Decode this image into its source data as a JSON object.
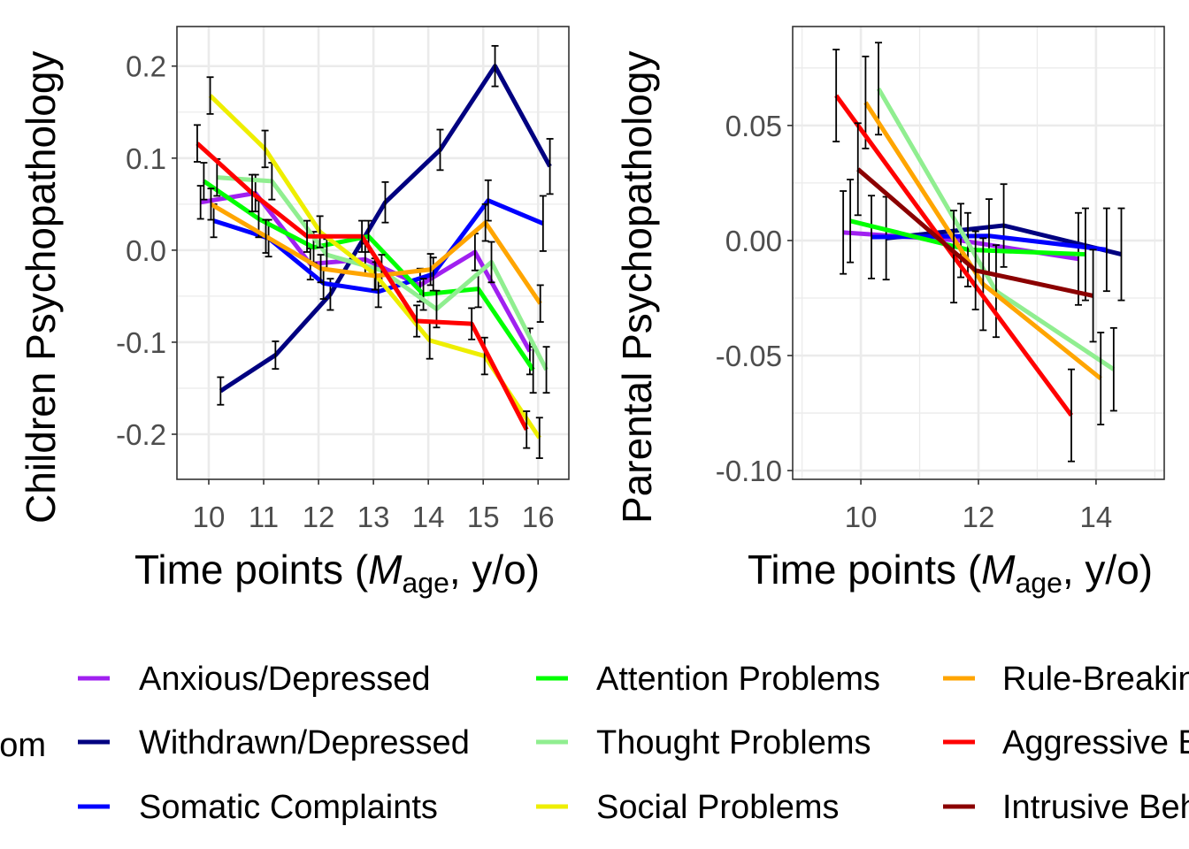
{
  "legend": {
    "title": "Symptom",
    "entries": [
      {
        "name": "Anxious/Depressed",
        "color": "#a020f0"
      },
      {
        "name": "Withdrawn/Depressed",
        "color": "#000080"
      },
      {
        "name": "Somatic Complaints",
        "color": "#0000ff"
      },
      {
        "name": "Attention Problems",
        "color": "#00ff00"
      },
      {
        "name": "Thought Problems",
        "color": "#90ee90"
      },
      {
        "name": "Social Problems",
        "color": "#eeee00"
      },
      {
        "name": "Rule-Breaking Behavior",
        "color": "#ffa500"
      },
      {
        "name": "Aggressive Behavior",
        "color": "#ff0000"
      },
      {
        "name": "Intrusive Behavior",
        "color": "#8b0000"
      }
    ]
  },
  "chart_data": [
    {
      "type": "line",
      "ylabel": "Children Psychopathology",
      "xlabel_main": "Time points (",
      "xlabel_italic": "M",
      "xlabel_sub": "age",
      "xlabel_end": ", y/o)",
      "xlim": [
        9.42,
        16.56
      ],
      "ylim": [
        -0.249,
        0.243
      ],
      "x_ticks": [
        10,
        11,
        12,
        13,
        14,
        15,
        16
      ],
      "y_ticks": [
        -0.2,
        -0.1,
        0.0,
        0.1,
        0.2
      ],
      "y_tick_labels": [
        "-0.2",
        "-0.1",
        "0.0",
        "0.1",
        "0.2"
      ],
      "grid": true,
      "x": [
        10,
        11,
        12,
        13,
        14,
        15,
        16
      ],
      "series": [
        {
          "name": "Anxious/Depressed",
          "values": [
            0.052,
            0.062,
            -0.015,
            -0.01,
            -0.038,
            -0.002,
            -0.11
          ],
          "se": [
            0.018,
            0.02,
            0.017,
            0.017,
            0.018,
            0.02,
            0.025
          ]
        },
        {
          "name": "Withdrawn/Depressed",
          "values": [
            -0.153,
            -0.114,
            -0.048,
            0.052,
            0.109,
            0.2,
            0.091
          ],
          "se": [
            0.015,
            0.015,
            0.017,
            0.022,
            0.022,
            0.022,
            0.03
          ]
        },
        {
          "name": "Somatic Complaints",
          "values": [
            0.032,
            0.013,
            -0.036,
            -0.045,
            -0.026,
            0.054,
            0.029
          ],
          "se": [
            0.018,
            0.02,
            0.017,
            0.017,
            0.018,
            0.022,
            0.03
          ]
        },
        {
          "name": "Attention Problems",
          "values": [
            0.075,
            0.034,
            0.003,
            0.015,
            -0.048,
            -0.042,
            -0.13
          ],
          "se": [
            0.02,
            0.02,
            0.017,
            0.017,
            0.017,
            0.02,
            0.025
          ]
        },
        {
          "name": "Thought Problems",
          "values": [
            0.079,
            0.075,
            -0.005,
            -0.022,
            -0.064,
            -0.013,
            -0.13
          ],
          "se": [
            0.02,
            0.02,
            0.017,
            0.017,
            0.02,
            0.022,
            0.025
          ]
        },
        {
          "name": "Social Problems",
          "values": [
            0.168,
            0.11,
            0.02,
            -0.026,
            -0.098,
            -0.115,
            -0.204
          ],
          "se": [
            0.02,
            0.02,
            0.017,
            0.017,
            0.02,
            0.02,
            0.022
          ]
        },
        {
          "name": "Rule-Breaking Behavior",
          "values": [
            0.05,
            0.015,
            -0.02,
            -0.028,
            -0.021,
            0.03,
            -0.058
          ],
          "se": [
            0.017,
            0.018,
            0.015,
            0.015,
            0.017,
            0.02,
            0.02
          ]
        },
        {
          "name": "Aggressive Behavior",
          "values": [
            0.116,
            0.062,
            0.015,
            0.015,
            -0.077,
            -0.08,
            -0.195
          ],
          "se": [
            0.02,
            0.02,
            0.017,
            0.017,
            0.017,
            0.017,
            0.02
          ]
        }
      ]
    },
    {
      "type": "line",
      "ylabel": "Parental Psychopathology",
      "xlabel_main": "Time points (",
      "xlabel_italic": "M",
      "xlabel_sub": "age",
      "xlabel_end": ", y/o)",
      "xlim": [
        8.84,
        15.16
      ],
      "ylim": [
        -0.1038,
        0.093
      ],
      "x_ticks": [
        10,
        12,
        14
      ],
      "y_ticks": [
        -0.1,
        -0.05,
        0.0,
        0.05
      ],
      "y_tick_labels": [
        "-0.10",
        "-0.05",
        "0.00",
        "0.05"
      ],
      "grid": true,
      "x": [
        10,
        12,
        14
      ],
      "series": [
        {
          "name": "Anxious/Depressed",
          "values": [
            0.0035,
            0.0,
            -0.008
          ],
          "se": [
            0.018,
            0.016,
            0.02
          ]
        },
        {
          "name": "Withdrawn/Depressed",
          "values": [
            0.001,
            0.0065,
            -0.006
          ],
          "se": [
            0.018,
            0.018,
            0.02
          ]
        },
        {
          "name": "Somatic Complaints",
          "values": [
            0.0015,
            0.002,
            -0.004
          ],
          "se": [
            0.018,
            0.016,
            0.018
          ]
        },
        {
          "name": "Attention Problems",
          "values": [
            0.0085,
            -0.004,
            -0.006
          ],
          "se": [
            0.018,
            0.016,
            0.02
          ]
        },
        {
          "name": "Thought Problems",
          "values": [
            0.066,
            -0.022,
            -0.056
          ],
          "se": [
            0.02,
            0.02,
            0.018
          ]
        },
        {
          "name": "Rule-Breaking Behavior",
          "values": [
            0.06,
            -0.019,
            -0.06
          ],
          "se": [
            0.02,
            0.02,
            0.02
          ]
        },
        {
          "name": "Aggressive Behavior",
          "values": [
            0.063,
            -0.007,
            -0.076
          ],
          "se": [
            0.02,
            0.02,
            0.02
          ]
        },
        {
          "name": "Intrusive Behavior",
          "values": [
            0.031,
            -0.013,
            -0.024
          ],
          "se": [
            0.02,
            0.017,
            0.02
          ]
        }
      ]
    }
  ]
}
